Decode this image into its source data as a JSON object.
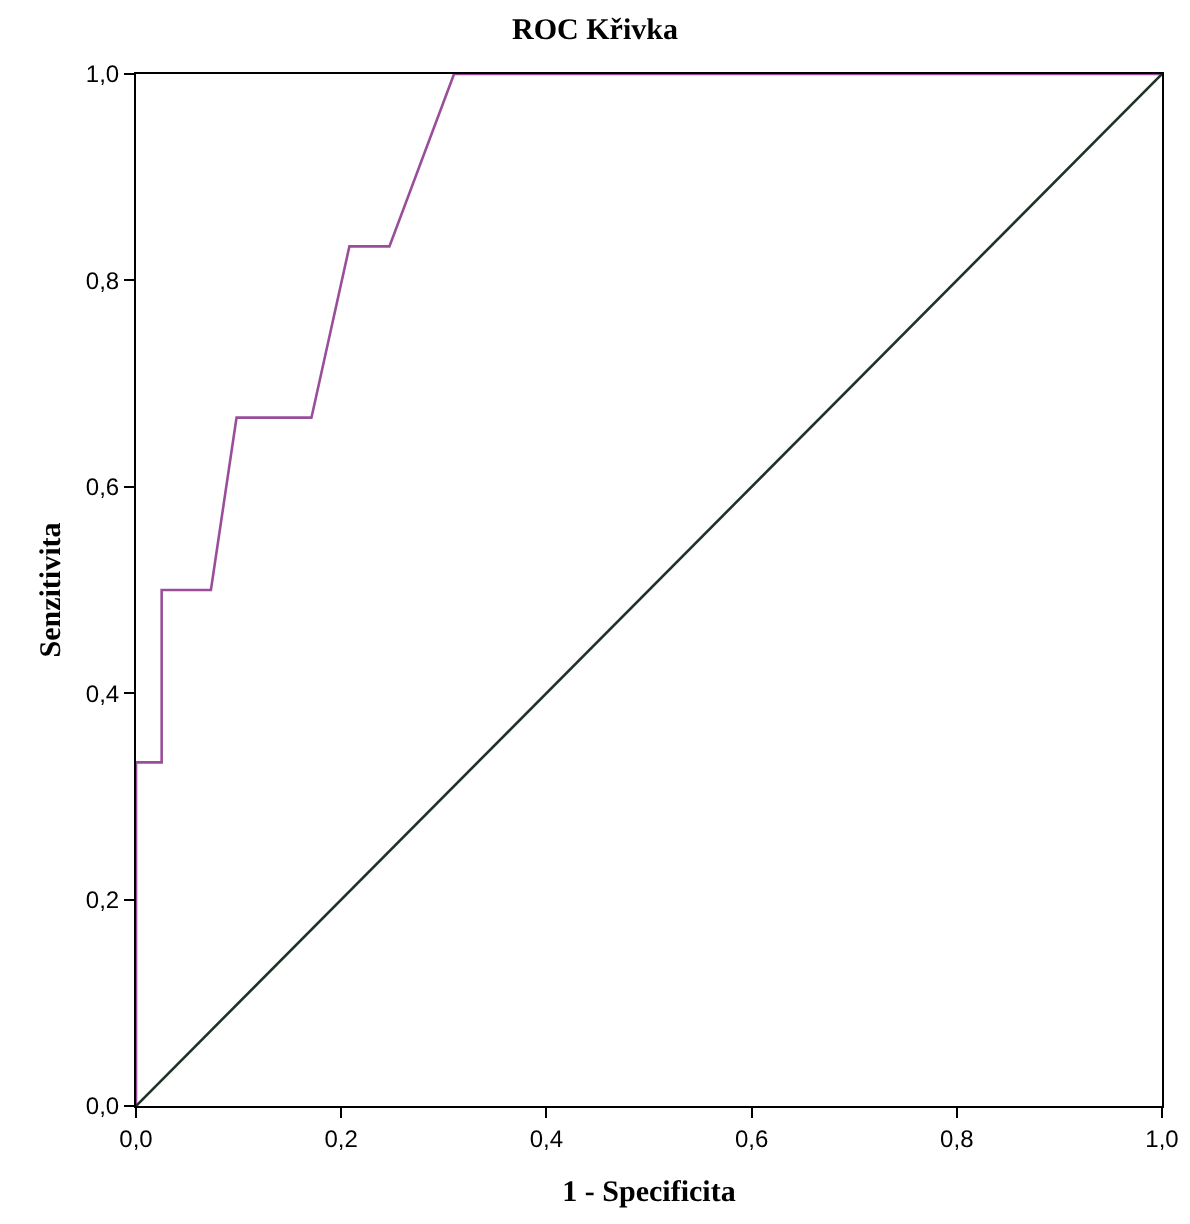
{
  "chart_data": {
    "type": "line",
    "title": "ROC Křivka",
    "xlabel": "1 - Specificita",
    "ylabel": "Senzitivita",
    "xlim": [
      0,
      1
    ],
    "ylim": [
      0,
      1
    ],
    "xticks": [
      {
        "value": 0,
        "label": "0,0"
      },
      {
        "value": 0.2,
        "label": "0,2"
      },
      {
        "value": 0.4,
        "label": "0,4"
      },
      {
        "value": 0.6,
        "label": "0,6"
      },
      {
        "value": 0.8,
        "label": "0,8"
      },
      {
        "value": 1,
        "label": "1,0"
      }
    ],
    "yticks": [
      {
        "value": 0,
        "label": "0,0"
      },
      {
        "value": 0.2,
        "label": "0,2"
      },
      {
        "value": 0.4,
        "label": "0,4"
      },
      {
        "value": 0.6,
        "label": "0,6"
      },
      {
        "value": 0.8,
        "label": "0,8"
      },
      {
        "value": 1,
        "label": "1,0"
      }
    ],
    "grid": false,
    "marker": "none",
    "line_style": "solid",
    "series": [
      {
        "color": "#9a4e9a",
        "x": [
          0,
          0,
          0.025,
          0.025,
          0.073,
          0.098,
          0.171,
          0.208,
          0.247,
          0.31,
          1
        ],
        "values": [
          0,
          0.333,
          0.333,
          0.5,
          0.5,
          0.667,
          0.667,
          0.833,
          0.833,
          1,
          1
        ]
      },
      {
        "color": "#1e3326",
        "x": [
          0,
          1
        ],
        "values": [
          0,
          1
        ]
      }
    ]
  }
}
